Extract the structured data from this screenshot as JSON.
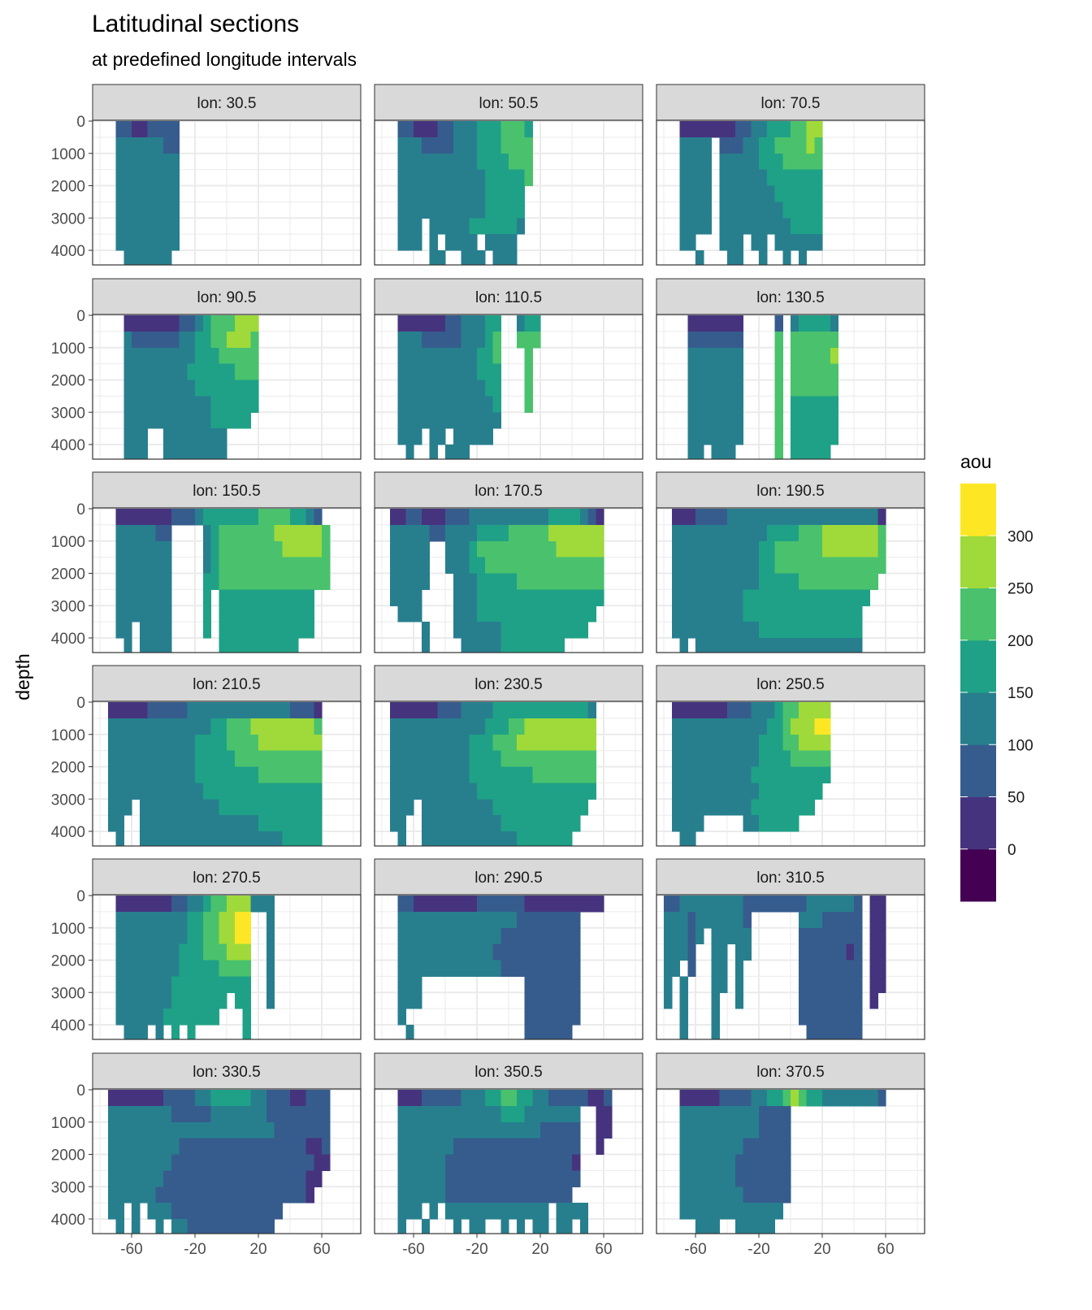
{
  "title": "Latitudinal sections",
  "subtitle": "at predefined longitude intervals",
  "chart_data": {
    "type": "heatmap",
    "title": "Latitudinal sections",
    "subtitle": "at predefined longitude intervals",
    "ylabel": "depth",
    "xlabel": "",
    "x_ticks": [
      -60,
      -20,
      20,
      60
    ],
    "y_ticks": [
      0,
      1000,
      2000,
      3000,
      4000
    ],
    "y_reversed": true,
    "grid": true,
    "legend": {
      "title": "aou",
      "position": "right",
      "breaks": [
        0,
        50,
        100,
        150,
        200,
        250,
        300
      ],
      "level_colors": [
        "#440154",
        "#46337E",
        "#365C8D",
        "#277F8E",
        "#1FA187",
        "#4AC16D",
        "#9FDA3A",
        "#FDE725"
      ],
      "level_ranges": [
        "<0",
        "0-50",
        "50-100",
        "100-150",
        "150-200",
        "200-250",
        "250-300",
        ">300"
      ]
    },
    "panels": [
      {
        "strip": "lon: 30.5",
        "rows": [
          "...22112222",
          "...33333322",
          "...33333333",
          "...33333333",
          "...33333333",
          "...33333333",
          "...33333333",
          "...33333333",
          "....333333"
        ]
      },
      {
        "strip": "lon: 50.5",
        "rows": [
          "...22111223334445554",
          "...33322223334445555",
          "...33333333334444555",
          "...33333333333444445",
          "...3333333333344444",
          "...3333333333344444",
          "...333.333334444443",
          "...333.3.3333.3333",
          ".......33..333.333"
        ]
      },
      {
        "strip": "lon: 70.5",
        "rows": [
          "...111111122334445566",
          "...3333.2223344555565",
          "...3333.3333344455555",
          "...3333.3333334444444",
          "...3333.3333333444444",
          "...3333.3333333344444",
          "...3333.3333333334444",
          "...33...333.33.333333",
          ".....3...33..3..3.3"
        ]
      },
      {
        "strip": "lon: 90.5",
        "rows": [
          "....11111112234555666",
          "....32222223344556665",
          "....33333333344455555",
          "....33333333444444555",
          "....33333333344444444",
          "....33333333333444444",
          "....3333333333344444",
          "....333..33333333",
          "....333..33333333"
        ]
      },
      {
        "strip": "lon: 110.5",
        "rows": [
          "...1111112233344..344",
          "...3332222233345..555",
          "...3333333333445...5",
          "...3333333333444...5",
          "...3333333333344...5",
          "...3333333333334...5",
          "...3333333333333",
          "...333.33.33333",
          "....3..3.333"
        ]
      },
      {
        "strip": "lon: 130.5",
        "rows": [
          "....1111111....2.344443",
          "....2222222....5.555555",
          "....3333333....5.555556",
          "....3333333....5.555555",
          "....3333333....5.555555",
          "....3333333....5.444444",
          "....3333333....5.444444",
          "....3333333....5.444444",
          "....33.333.....5.44444"
        ]
      },
      {
        "strip": "lon: 150.5",
        "rows": [
          "...11111112223444444455554432",
          "...3333322....3455555556666665",
          "...3333333....3455555555666665",
          "...3333333....3455555555555555",
          "...3333333....4455555555555555",
          "...3333333....4.444444444444",
          "...3333333....4.444444444444",
          "...33.3333....4.444444444444",
          "....3.3333......4444444444"
        ]
      },
      {
        "strip": "lon: 170.5",
        "rows": [
          "..112211122233333333334444321",
          "..333332233334444555556666666",
          "..33333..33345555555555666666",
          "..33333..33344555555555555555",
          "..33333...3334444455555555555",
          "..3333....3334444444444444444",
          "...333....333444444444444444.",
          "......3...33333344444444444..",
          "......3....3333344444444....."
        ]
      },
      {
        "strip": "lon: 190.5",
        "rows": [
          "..111222233333333333333333331",
          "..333333333333444455566666665",
          "..333333333334455555566666665",
          "..333333333334455555555555555",
          "..33333333333444445555555555.",
          "..3333333334444444444444444..",
          "..333333333444444444444444...",
          "..333333333334444444444444...",
          "...3.333333333333333333333..."
        ]
      },
      {
        "strip": "lon: 210.5",
        "rows": [
          "..111112222233333333333332221",
          "..333333333333344555666666665",
          "..333333333334444555566666666",
          "..333333333334444455555555555",
          "..333333333334444444455555555",
          "..333333333333444444444444444",
          "..333.33333333334444444444444",
          "..33..33333333333333344444444",
          "...3..33333333333333333344444"
        ]
      },
      {
        "strip": "lon: 230.5",
        "rows": [
          "..11111122233334444444444443",
          "..33333333333344455666666666",
          "..33333333334445556666666666",
          "..33333333334444555555555555",
          "..33333333334444444455555555",
          "..33333333333444444444444444",
          "..333.333333333444444444444.",
          "..33..33333333334444444444..",
          "...3..3333333333334444444..."
        ]
      },
      {
        "strip": "lon: 250.5",
        "rows": [
          "..11111112223334556666",
          "..33333333333344566677",
          "..33333333333444556666",
          "..33333333333444455555",
          "..33333333334444444444",
          "..3333333333344444444.",
          "..333333333344444444..",
          "..3333.....3344444....",
          "...33................."
        ]
      },
      {
        "strip": "lon: 270.5",
        "rows": [
          "...11111112233455666333",
          "...33333333344556677..3",
          "...33333333344556677..3",
          "...33333333444555666..3",
          "...33333333444445555..3",
          "...33333334444444444..3",
          "...33333334444444.44..3",
          "...3333334444444...4",
          "....333.3.4.4......4"
        ]
      },
      {
        "strip": "lon: 290.5",
        "rows": [
          "...22111111112222221111111111",
          "...33333333333333322222222",
          "...33333333333332222222222",
          "...33333333333322222222222",
          "...33333333333332222222222",
          "...333.............2222222",
          "...333.............2222222",
          "...3...............2222222",
          "....3..............222222."
        ]
      },
      {
        "strip": "lon: 310.5",
        "rows": [
          ".2233333333222222223333332.11",
          ".33323333332......33322222.11",
          ".33323.33333......22222222.11",
          ".3332..33.33......22222212.11",
          ".33.2..33.3.......22222222.11",
          ".3.3...33.3.......22222222.11",
          ".3.3...3..3.......22222222.1.",
          "...3...3..........22222222",
          "...3...3...........2222222"
        ]
      },
      {
        "strip": "lon: 330.5",
        "rows": [
          "..1111111222233444443322211222",
          "..3333333322222333333322222222",
          "..3333333333333333333332222222",
          "..3333333332222222222222222112",
          "..3333333322222222222222222211.",
          "..333333322222222222222222211.",
          "..33333322222222222222222221..",
          "..33.3.33322222222222222",
          "...3.3..3.3322222222222"
        ]
      },
      {
        "strip": "lon: 350.5",
        "rows": [
          "...111222223334455443322222112",
          "...33333333333334443333333..11",
          "...33333333333333333322222..11",
          "...33333332222222222222222..1.",
          "...33333322222222222222221",
          "...33333322222222222222222",
          "...3333332222222222222222",
          "...333.3.3333333333333.3333",
          "...3..3...3.33..3.3.33.33.3"
        ]
      },
      {
        "strip": "lon: 370.5",
        "rows": [
          "...11111222233445654433333332",
          "...33333333332222",
          "...33333333332222",
          "...33333333222222",
          "...33333332222222",
          "...33333332222222",
          "...33333333222222",
          "...3333333333333",
          ".....333..33333"
        ]
      }
    ]
  }
}
